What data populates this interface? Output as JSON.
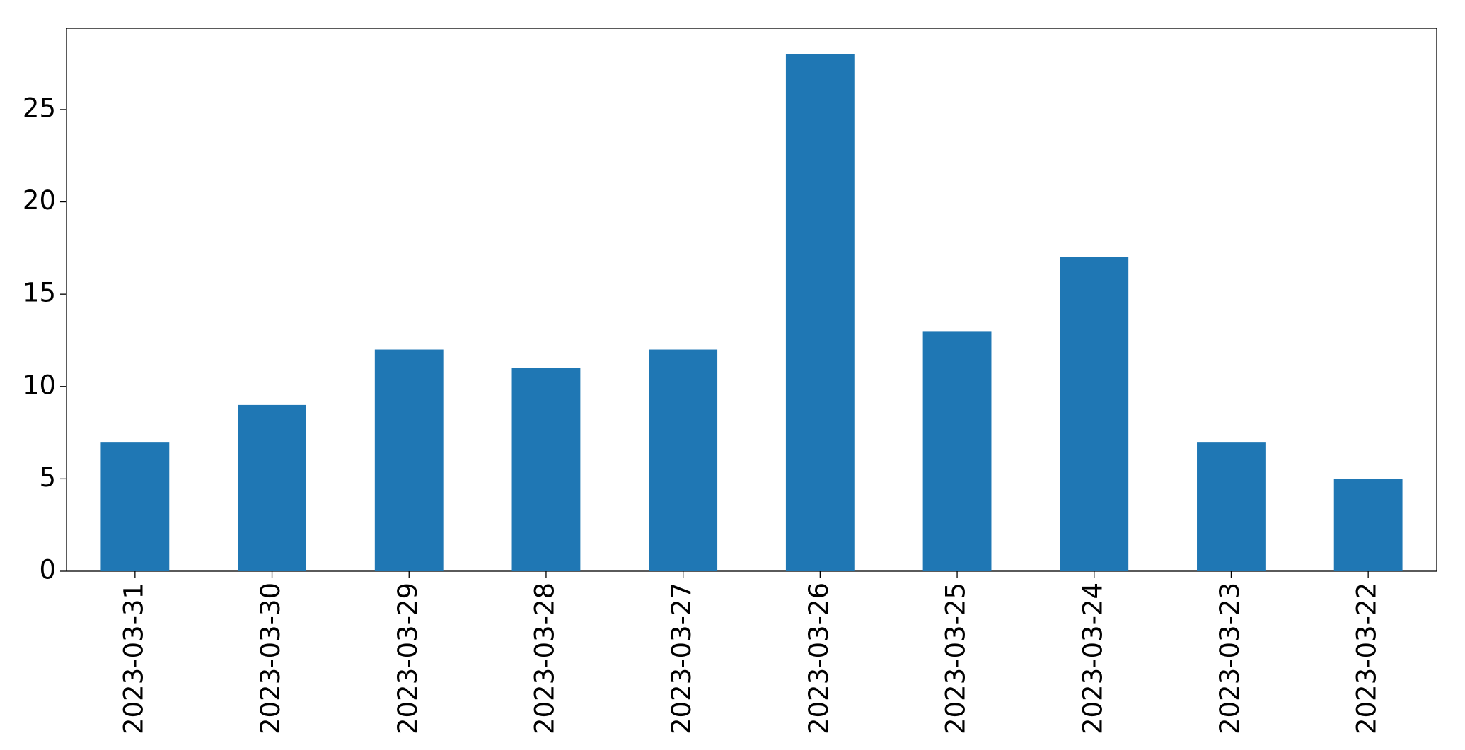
{
  "chart_data": {
    "type": "bar",
    "categories": [
      "2023-03-31",
      "2023-03-30",
      "2023-03-29",
      "2023-03-28",
      "2023-03-27",
      "2023-03-26",
      "2023-03-25",
      "2023-03-24",
      "2023-03-23",
      "2023-03-22"
    ],
    "values": [
      7,
      9,
      12,
      11,
      12,
      28,
      13,
      17,
      7,
      5
    ],
    "color": "#1f77b4",
    "ylim": [
      0,
      29.4
    ],
    "yticks": [
      0,
      5,
      10,
      15,
      20,
      25
    ],
    "grid": false
  }
}
